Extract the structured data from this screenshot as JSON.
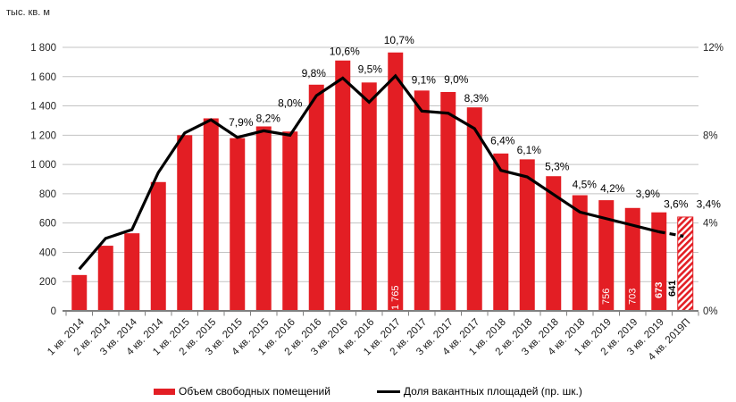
{
  "chart_data": {
    "type": "bar+line",
    "categories": [
      "1 кв. 2014",
      "2 кв. 2014",
      "3 кв. 2014",
      "4 кв. 2014",
      "1 кв. 2015",
      "2 кв. 2015",
      "3 кв. 2015",
      "4 кв. 2015",
      "1 кв. 2016",
      "2 кв. 2016",
      "3 кв. 2016",
      "4 кв. 2016",
      "1 кв. 2017",
      "2 кв. 2017",
      "3 кв. 2017",
      "4 кв. 2017",
      "1 кв. 2018",
      "2 кв. 2018",
      "3 кв. 2018",
      "4 кв. 2018",
      "1 кв. 2019",
      "2 кв. 2019",
      "3 кв. 2019",
      "4 кв. 2019П"
    ],
    "series": [
      {
        "name": "Объем свободных помещений",
        "type": "bar",
        "color": "#e31e24",
        "values": [
          245,
          445,
          530,
          880,
          1200,
          1315,
          1180,
          1260,
          1225,
          1545,
          1710,
          1560,
          1765,
          1505,
          1495,
          1390,
          1075,
          1035,
          920,
          790,
          756,
          703,
          673,
          641
        ],
        "value_labels": [
          {
            "index": 12,
            "text": "1 765",
            "style": "inside-white"
          },
          {
            "index": 20,
            "text": "756",
            "style": "inside-white"
          },
          {
            "index": 21,
            "text": "703",
            "style": "inside-white"
          },
          {
            "index": 22,
            "text": "673",
            "style": "inside-white-bold"
          },
          {
            "index": 23,
            "text": "641",
            "style": "outside-black-bold"
          }
        ],
        "last_bar_hatched": true
      },
      {
        "name": "Доля вакантных площадей (пр. шк.)",
        "type": "line",
        "axis": "right",
        "color": "#000000",
        "values": [
          1.9,
          3.3,
          3.7,
          6.3,
          8.1,
          8.7,
          7.9,
          8.2,
          8.0,
          9.8,
          10.6,
          9.5,
          10.7,
          9.1,
          9.0,
          8.3,
          6.4,
          6.1,
          5.3,
          4.5,
          4.2,
          3.9,
          3.6,
          3.4
        ],
        "point_labels": [
          null,
          null,
          null,
          null,
          null,
          null,
          "7,9%",
          "8,2%",
          "8,0%",
          "9,8%",
          "10,6%",
          "9,5%",
          "10,7%",
          "9,1%",
          "9,0%",
          "8,3%",
          "6,4%",
          "6,1%",
          "5,3%",
          "4,5%",
          "4,2%",
          "3,9%",
          "3,6%",
          "3,4%"
        ],
        "last_segment_dashed": true
      }
    ],
    "left_axis": {
      "unit": "тыс. кв. м",
      "min": 0,
      "max": 1800,
      "step": 200,
      "tick_labels": [
        "0",
        "200",
        "400",
        "600",
        "800",
        "1 000",
        "1 200",
        "1 400",
        "1 600",
        "1 800"
      ]
    },
    "right_axis": {
      "min": 0,
      "max": 12,
      "step": 4,
      "tick_labels": [
        "0%",
        "4%",
        "8%",
        "12%"
      ]
    },
    "grid": "horizontal",
    "legend_position": "bottom"
  },
  "colors": {
    "bar": "#e31e24",
    "line": "#000000",
    "gridline": "#c3c3c3",
    "axis": "#808080",
    "tick_text": "#262626"
  }
}
